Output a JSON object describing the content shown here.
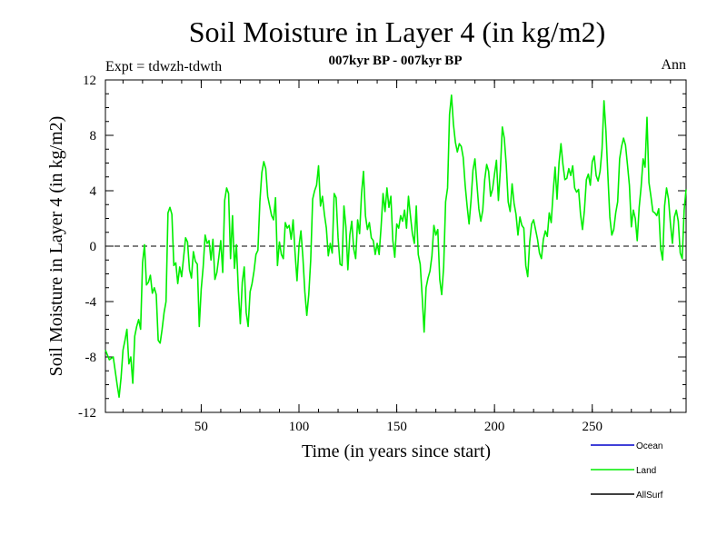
{
  "chart_data": {
    "type": "line",
    "title": "Soil Moisture in Layer 4 (in kg/m2)",
    "subtitle": "007kyr BP - 007kyr BP",
    "expt_label": "Expt = tdwzh-tdwth",
    "season_label": "Ann",
    "xlabel": "Time (in years since start)",
    "ylabel": "Soil Moisture in Layer 4 (in kg/m2)",
    "xlim": [
      1,
      298
    ],
    "ylim": [
      -12,
      12
    ],
    "xticks": [
      50,
      100,
      150,
      200,
      250
    ],
    "yticks": [
      -12,
      -8,
      -4,
      0,
      4,
      8,
      12
    ],
    "zero_line": true,
    "grid": false,
    "legend_position": "bottom-right",
    "series": [
      {
        "name": "Ocean",
        "color": "#0000cc",
        "points": []
      },
      {
        "name": "Land",
        "color": "#00ee00",
        "points": [
          [
            1,
            -7.5
          ],
          [
            3,
            -8.2
          ],
          [
            5,
            -8
          ],
          [
            7,
            -10
          ],
          [
            8,
            -10.9
          ],
          [
            9,
            -9.5
          ],
          [
            10,
            -7.5
          ],
          [
            11,
            -6.8
          ],
          [
            12,
            -6
          ],
          [
            13,
            -8.5
          ],
          [
            14,
            -8
          ],
          [
            15,
            -9.9
          ],
          [
            16,
            -6.5
          ],
          [
            17,
            -5.8
          ],
          [
            18,
            -5.3
          ],
          [
            19,
            -6
          ],
          [
            20,
            -1.2
          ],
          [
            21,
            0.1
          ],
          [
            22,
            -2.8
          ],
          [
            23,
            -2.6
          ],
          [
            24,
            -2.1
          ],
          [
            25,
            -3.4
          ],
          [
            26,
            -3
          ],
          [
            27,
            -3.5
          ],
          [
            28,
            -6.8
          ],
          [
            29,
            -7
          ],
          [
            30,
            -6
          ],
          [
            31,
            -4.8
          ],
          [
            32,
            -4
          ],
          [
            33,
            2.4
          ],
          [
            34,
            2.8
          ],
          [
            35,
            2.3
          ],
          [
            36,
            -1.4
          ],
          [
            37,
            -1.2
          ],
          [
            38,
            -2.7
          ],
          [
            39,
            -1.5
          ],
          [
            40,
            -2.2
          ],
          [
            41,
            -0.8
          ],
          [
            42,
            0.6
          ],
          [
            43,
            0.3
          ],
          [
            44,
            -1.7
          ],
          [
            45,
            -2.3
          ],
          [
            46,
            -0.4
          ],
          [
            47,
            -1.1
          ],
          [
            48,
            -1.3
          ],
          [
            49,
            -5.8
          ],
          [
            50,
            -3.1
          ],
          [
            51,
            -1.5
          ],
          [
            52,
            0.8
          ],
          [
            53,
            0.2
          ],
          [
            54,
            0.4
          ],
          [
            55,
            -1
          ],
          [
            56,
            0.5
          ],
          [
            57,
            -2.4
          ],
          [
            58,
            -1.9
          ],
          [
            59,
            -0.8
          ],
          [
            60,
            0.4
          ],
          [
            61,
            -1.9
          ],
          [
            62,
            3.3
          ],
          [
            63,
            4.2
          ],
          [
            64,
            3.8
          ],
          [
            65,
            -0.9
          ],
          [
            66,
            2.2
          ],
          [
            67,
            -1.6
          ],
          [
            68,
            0.1
          ],
          [
            69,
            -3.2
          ],
          [
            70,
            -5.6
          ],
          [
            71,
            -2.6
          ],
          [
            72,
            -1.5
          ],
          [
            73,
            -4.8
          ],
          [
            74,
            -5.8
          ],
          [
            75,
            -3.3
          ],
          [
            76,
            -2.7
          ],
          [
            77,
            -1.8
          ],
          [
            78,
            -0.6
          ],
          [
            79,
            -0.3
          ],
          [
            80,
            3.2
          ],
          [
            81,
            5.3
          ],
          [
            82,
            6.1
          ],
          [
            83,
            5.6
          ],
          [
            84,
            3.6
          ],
          [
            85,
            2.9
          ],
          [
            86,
            2.2
          ],
          [
            87,
            1.9
          ],
          [
            88,
            3.5
          ],
          [
            89,
            -1.4
          ],
          [
            90,
            0.3
          ],
          [
            91,
            -0.6
          ],
          [
            92,
            -0.9
          ],
          [
            93,
            1.7
          ],
          [
            94,
            1.3
          ],
          [
            95,
            1.5
          ],
          [
            96,
            0.5
          ],
          [
            97,
            1.9
          ],
          [
            98,
            -0.5
          ],
          [
            99,
            -2.5
          ],
          [
            100,
            0
          ],
          [
            101,
            1.1
          ],
          [
            102,
            -0.8
          ],
          [
            103,
            -3.3
          ],
          [
            104,
            -5
          ],
          [
            105,
            -3.5
          ],
          [
            106,
            -1
          ],
          [
            107,
            3.4
          ],
          [
            108,
            4
          ],
          [
            109,
            4.4
          ],
          [
            110,
            5.8
          ],
          [
            111,
            2.9
          ],
          [
            112,
            3.6
          ],
          [
            113,
            2.3
          ],
          [
            114,
            1.3
          ],
          [
            115,
            -0.7
          ],
          [
            116,
            0.2
          ],
          [
            117,
            -0.5
          ],
          [
            118,
            3.8
          ],
          [
            119,
            3.5
          ],
          [
            120,
            0.6
          ],
          [
            121,
            -1.3
          ],
          [
            122,
            -1.4
          ],
          [
            123,
            2.9
          ],
          [
            124,
            1.4
          ],
          [
            125,
            -1.7
          ],
          [
            126,
            0.8
          ],
          [
            127,
            1.8
          ],
          [
            128,
            -0.2
          ],
          [
            129,
            -0.9
          ],
          [
            130,
            1.9
          ],
          [
            131,
            0.9
          ],
          [
            132,
            3.8
          ],
          [
            133,
            5.4
          ],
          [
            134,
            2.2
          ],
          [
            135,
            1.2
          ],
          [
            136,
            1.7
          ],
          [
            137,
            0.6
          ],
          [
            138,
            0.4
          ],
          [
            139,
            -0.6
          ],
          [
            140,
            0.2
          ],
          [
            141,
            -0.6
          ],
          [
            142,
            1.4
          ],
          [
            143,
            3.8
          ],
          [
            144,
            2.5
          ],
          [
            145,
            4.2
          ],
          [
            146,
            2.8
          ],
          [
            147,
            3.6
          ],
          [
            148,
            0.4
          ],
          [
            149,
            -0.8
          ],
          [
            150,
            1.6
          ],
          [
            151,
            1.3
          ],
          [
            152,
            2.2
          ],
          [
            153,
            1.8
          ],
          [
            154,
            2.6
          ],
          [
            155,
            1.3
          ],
          [
            156,
            3.6
          ],
          [
            157,
            2.2
          ],
          [
            158,
            0.9
          ],
          [
            159,
            0.2
          ],
          [
            160,
            2.9
          ],
          [
            161,
            -0.6
          ],
          [
            162,
            -1.3
          ],
          [
            163,
            -3.6
          ],
          [
            164,
            -6.2
          ],
          [
            165,
            -3
          ],
          [
            166,
            -2.3
          ],
          [
            167,
            -1.8
          ],
          [
            168,
            -0.7
          ],
          [
            169,
            1.5
          ],
          [
            170,
            0.8
          ],
          [
            171,
            1.2
          ],
          [
            172,
            -2.4
          ],
          [
            173,
            -3.5
          ],
          [
            174,
            -1.5
          ],
          [
            175,
            3.2
          ],
          [
            176,
            4.2
          ],
          [
            177,
            9.5
          ],
          [
            178,
            10.9
          ],
          [
            179,
            8.8
          ],
          [
            180,
            7.5
          ],
          [
            181,
            6.8
          ],
          [
            182,
            7.4
          ],
          [
            183,
            7.2
          ],
          [
            184,
            6.4
          ],
          [
            185,
            4.4
          ],
          [
            186,
            2.9
          ],
          [
            187,
            1.6
          ],
          [
            188,
            3.3
          ],
          [
            189,
            5.5
          ],
          [
            190,
            6.3
          ],
          [
            191,
            4.5
          ],
          [
            192,
            2.7
          ],
          [
            193,
            1.8
          ],
          [
            194,
            2.6
          ],
          [
            195,
            4.8
          ],
          [
            196,
            5.9
          ],
          [
            197,
            5.4
          ],
          [
            198,
            3.6
          ],
          [
            199,
            4.1
          ],
          [
            200,
            5.2
          ],
          [
            201,
            6.2
          ],
          [
            202,
            3.3
          ],
          [
            203,
            5.5
          ],
          [
            204,
            8.6
          ],
          [
            205,
            7.8
          ],
          [
            206,
            5.9
          ],
          [
            207,
            3.2
          ],
          [
            208,
            2.5
          ],
          [
            209,
            4.5
          ],
          [
            210,
            3.1
          ],
          [
            211,
            2.3
          ],
          [
            212,
            0.8
          ],
          [
            213,
            2.1
          ],
          [
            214,
            1.5
          ],
          [
            215,
            1.3
          ],
          [
            216,
            -1.4
          ],
          [
            217,
            -2.2
          ],
          [
            218,
            0.3
          ],
          [
            219,
            1.6
          ],
          [
            220,
            1.9
          ],
          [
            221,
            1.2
          ],
          [
            222,
            0.5
          ],
          [
            223,
            -0.5
          ],
          [
            224,
            -0.9
          ],
          [
            225,
            0.5
          ],
          [
            226,
            1.1
          ],
          [
            227,
            0.7
          ],
          [
            228,
            2.4
          ],
          [
            229,
            1.7
          ],
          [
            230,
            3.9
          ],
          [
            231,
            5.7
          ],
          [
            232,
            3.4
          ],
          [
            233,
            6
          ],
          [
            234,
            7.4
          ],
          [
            235,
            5.9
          ],
          [
            236,
            4.8
          ],
          [
            237,
            4.9
          ],
          [
            238,
            5.6
          ],
          [
            239,
            5.1
          ],
          [
            240,
            5.8
          ],
          [
            241,
            4.2
          ],
          [
            242,
            3.9
          ],
          [
            243,
            4.1
          ],
          [
            244,
            2.3
          ],
          [
            245,
            1.2
          ],
          [
            246,
            2.6
          ],
          [
            247,
            4.8
          ],
          [
            248,
            5.2
          ],
          [
            249,
            4.4
          ],
          [
            250,
            6.1
          ],
          [
            251,
            6.5
          ],
          [
            252,
            5.1
          ],
          [
            253,
            4.7
          ],
          [
            254,
            5.4
          ],
          [
            255,
            7
          ],
          [
            256,
            10.5
          ],
          [
            257,
            8.3
          ],
          [
            258,
            5.1
          ],
          [
            259,
            2.1
          ],
          [
            260,
            0.8
          ],
          [
            261,
            1.2
          ],
          [
            262,
            2.4
          ],
          [
            263,
            3.2
          ],
          [
            264,
            6.3
          ],
          [
            265,
            7.2
          ],
          [
            266,
            7.8
          ],
          [
            267,
            7.3
          ],
          [
            268,
            5.9
          ],
          [
            269,
            4.4
          ],
          [
            270,
            1.4
          ],
          [
            271,
            2.6
          ],
          [
            272,
            2
          ],
          [
            273,
            0.4
          ],
          [
            274,
            2.8
          ],
          [
            275,
            4.3
          ],
          [
            276,
            6.3
          ],
          [
            277,
            5.7
          ],
          [
            278,
            9.3
          ],
          [
            279,
            4.6
          ],
          [
            280,
            3.6
          ],
          [
            281,
            2.5
          ],
          [
            282,
            2.4
          ],
          [
            283,
            2.2
          ],
          [
            284,
            2.7
          ],
          [
            285,
            -0.2
          ],
          [
            286,
            -1
          ],
          [
            287,
            2.9
          ],
          [
            288,
            4.2
          ],
          [
            289,
            3.4
          ],
          [
            290,
            1.6
          ],
          [
            291,
            0.2
          ],
          [
            292,
            2.1
          ],
          [
            293,
            2.6
          ],
          [
            294,
            1.8
          ],
          [
            295,
            -0.5
          ],
          [
            296,
            -0.9
          ],
          [
            297,
            2.6
          ],
          [
            298,
            4.1
          ]
        ]
      },
      {
        "name": "AllSurf",
        "color": "#000000",
        "points": []
      }
    ]
  }
}
